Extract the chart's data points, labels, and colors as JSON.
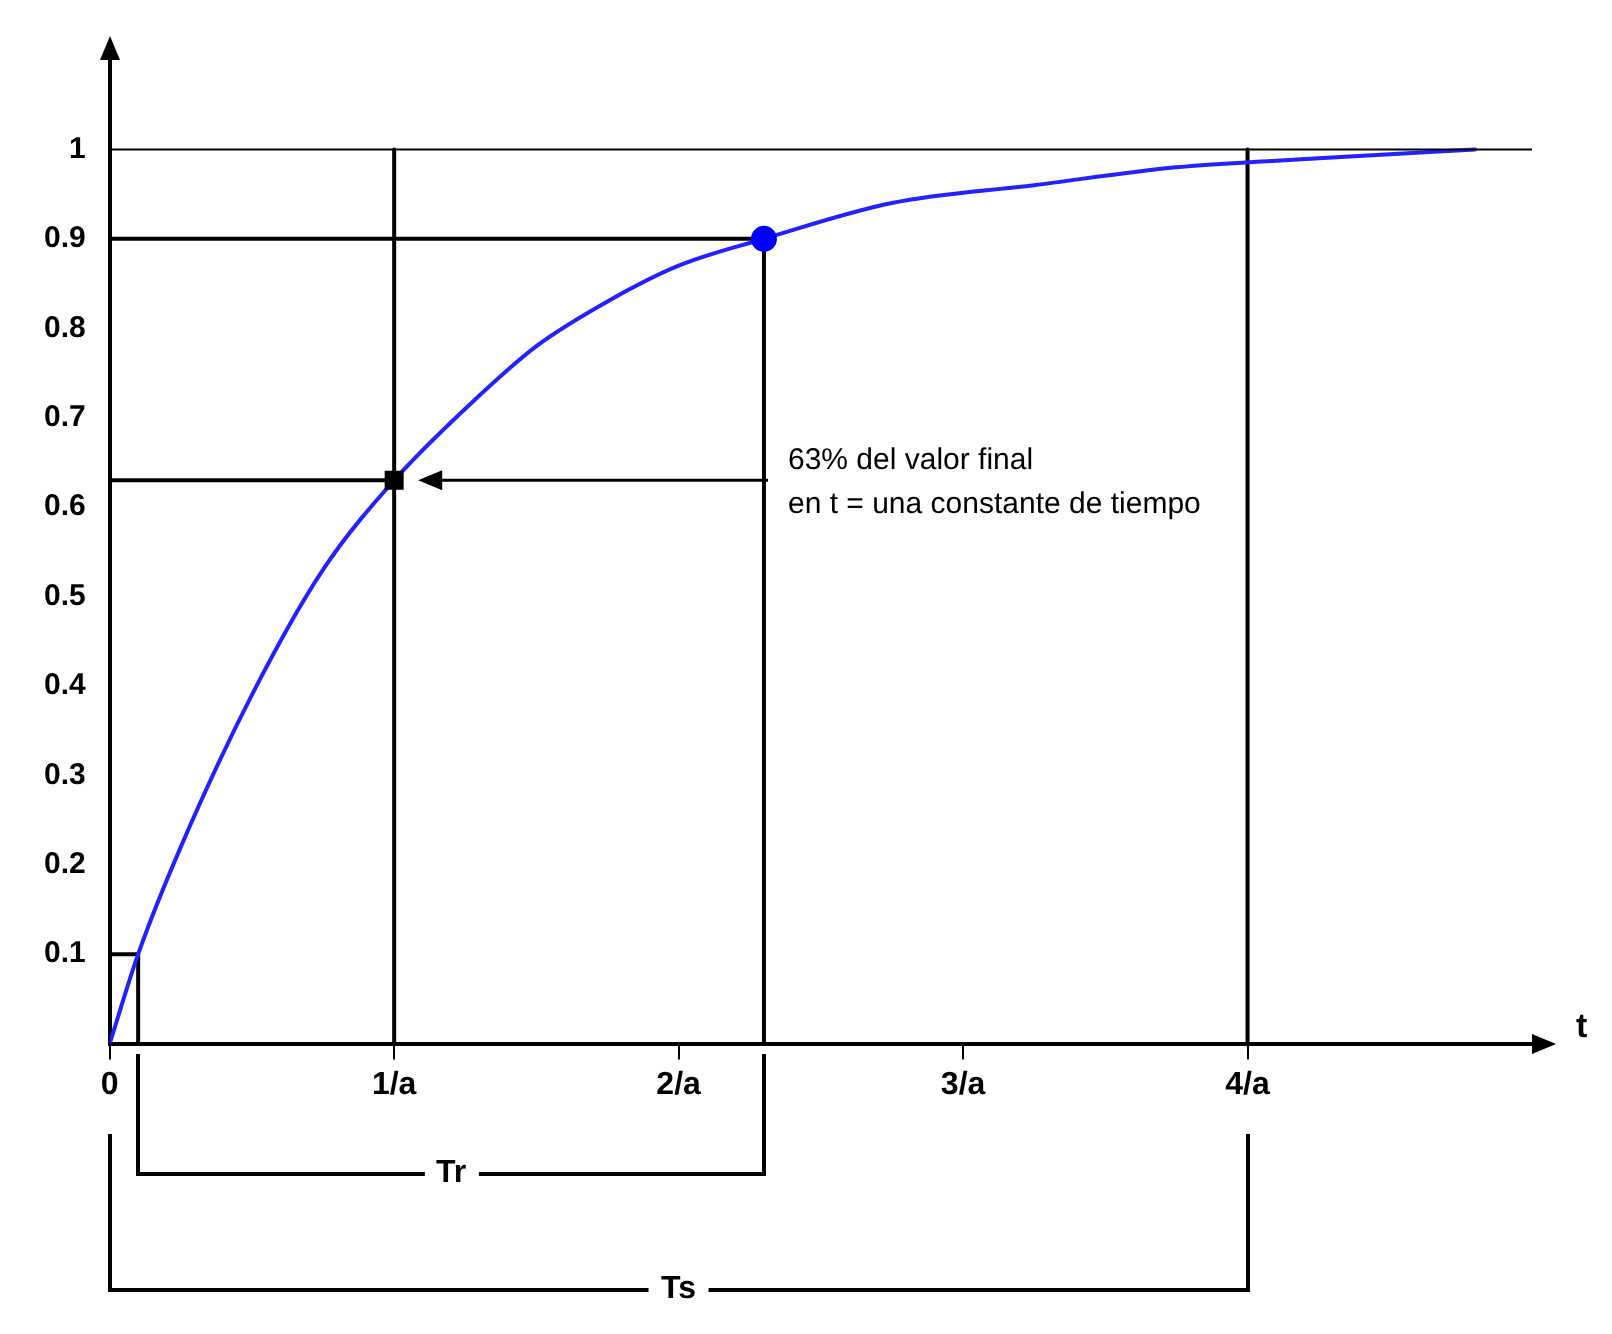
{
  "chart_data": {
    "type": "line",
    "xlabel": "t",
    "xlim": [
      0,
      5
    ],
    "xticks": [
      {
        "value": 0,
        "label": "0"
      },
      {
        "value": 1,
        "label": "1/a"
      },
      {
        "value": 2,
        "label": "2/a"
      },
      {
        "value": 3,
        "label": "3/a"
      },
      {
        "value": 4,
        "label": "4/a"
      }
    ],
    "ylim": [
      0,
      1.1
    ],
    "yticks": [
      0.1,
      0.2,
      0.3,
      0.4,
      0.5,
      0.6,
      0.7,
      0.8,
      0.9,
      1
    ],
    "grid": false,
    "legend": false,
    "series": [
      {
        "color": "#2222ff",
        "marker": "none",
        "x": [
          0,
          0.1,
          0.25,
          0.5,
          0.75,
          1,
          1.25,
          1.5,
          1.75,
          2,
          2.3,
          2.75,
          3.25,
          3.75,
          4.25,
          4.8
        ],
        "values": [
          0,
          0.1,
          0.22,
          0.39,
          0.53,
          0.63,
          0.71,
          0.78,
          0.83,
          0.87,
          0.9,
          0.94,
          0.96,
          0.98,
          0.99,
          1
        ]
      },
      {
        "type": "scatter",
        "color": "#000000",
        "marker": "square",
        "x": [
          1
        ],
        "values": [
          0.63
        ]
      },
      {
        "type": "scatter",
        "color": "#0000ff",
        "marker": "circle",
        "x": [
          2.3
        ],
        "values": [
          0.9
        ]
      },
      {
        "type": "line",
        "color": "#000000",
        "marker": "none",
        "x": [
          0,
          2.3,
          2.3
        ],
        "values": [
          0.9,
          0.9,
          0
        ]
      },
      {
        "type": "line",
        "color": "#000000",
        "marker": "none",
        "x": [
          0,
          1
        ],
        "values": [
          0.63,
          0.63
        ]
      },
      {
        "type": "line",
        "color": "#000000",
        "marker": "none",
        "x": [
          1,
          1
        ],
        "values": [
          0,
          1
        ]
      },
      {
        "type": "line",
        "color": "#000000",
        "marker": "none",
        "x": [
          4,
          4
        ],
        "values": [
          0,
          1
        ]
      },
      {
        "type": "line",
        "color": "#000000",
        "marker": "none",
        "x": [
          0,
          0.1,
          0.1
        ],
        "values": [
          0.1,
          0.1,
          0
        ]
      }
    ],
    "ref_lines": [
      {
        "axis": "y",
        "value": 1,
        "color": "#000000"
      }
    ],
    "annotations": [
      "63% del valor final\nen t = una constante de tiempo",
      "Tr",
      "Ts"
    ]
  }
}
